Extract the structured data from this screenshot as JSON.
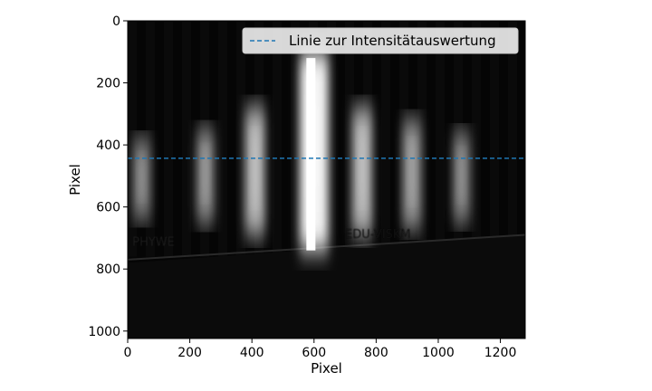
{
  "chart_data": {
    "type": "image",
    "xlabel": "Pixel",
    "ylabel": "Pixel",
    "xlim": [
      0,
      1280
    ],
    "ylim": [
      1024,
      0
    ],
    "x_ticks": [
      0,
      200,
      400,
      600,
      800,
      1000,
      1200
    ],
    "y_ticks": [
      0,
      200,
      400,
      600,
      800,
      1000
    ],
    "legend": {
      "placement": "top-right",
      "entries": [
        {
          "label": "Linie zur Intensitätauswertung",
          "color": "#1f77b4",
          "style": "dashed"
        }
      ]
    },
    "hline": {
      "y": 443,
      "color": "#1f77b4",
      "style": "dashed"
    },
    "image": {
      "colormap": "gray",
      "fringes": [
        {
          "x": 45,
          "y0": 380,
          "y1": 640,
          "intensity": 0.45
        },
        {
          "x": 250,
          "y0": 350,
          "y1": 650,
          "intensity": 0.5
        },
        {
          "x": 410,
          "y0": 280,
          "y1": 690,
          "intensity": 0.7
        },
        {
          "x": 600,
          "y0": 100,
          "y1": 740,
          "intensity": 1.0
        },
        {
          "x": 755,
          "y0": 280,
          "y1": 690,
          "intensity": 0.7
        },
        {
          "x": 915,
          "y0": 320,
          "y1": 670,
          "intensity": 0.55
        },
        {
          "x": 1075,
          "y0": 360,
          "y1": 650,
          "intensity": 0.45
        }
      ],
      "overlay_text": [
        "PHYWE",
        "EDU-VISKM"
      ]
    }
  }
}
